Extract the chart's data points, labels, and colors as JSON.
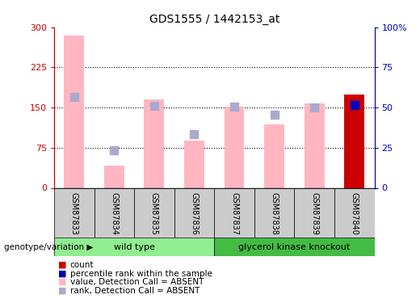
{
  "title": "GDS1555 / 1442153_at",
  "samples": [
    "GSM87833",
    "GSM87834",
    "GSM87835",
    "GSM87836",
    "GSM87837",
    "GSM87838",
    "GSM87839",
    "GSM87840"
  ],
  "values_absent": [
    285,
    42,
    165,
    88,
    152,
    118,
    158,
    null
  ],
  "ranks_absent": [
    170,
    70,
    153,
    100,
    152,
    137,
    150,
    null
  ],
  "count_value": [
    null,
    null,
    null,
    null,
    null,
    null,
    null,
    175
  ],
  "percentile_rank": [
    null,
    null,
    null,
    null,
    null,
    null,
    null,
    155
  ],
  "left_ylim": [
    0,
    300
  ],
  "right_ylim": [
    0,
    100
  ],
  "left_yticks": [
    0,
    75,
    150,
    225,
    300
  ],
  "right_yticks": [
    0,
    25,
    50,
    75,
    100
  ],
  "left_yticklabels": [
    "0",
    "75",
    "150",
    "225",
    "300"
  ],
  "right_yticklabels": [
    "0",
    "25",
    "50",
    "75",
    "100%"
  ],
  "groups": [
    {
      "label": "wild type",
      "samples": [
        0,
        1,
        2,
        3
      ],
      "color": "#90EE90"
    },
    {
      "label": "glycerol kinase knockout",
      "samples": [
        4,
        5,
        6,
        7
      ],
      "color": "#44BB44"
    }
  ],
  "bar_color_absent_value": "#FFB6C1",
  "bar_color_absent_rank": "#AAAACC",
  "bar_color_count": "#CC0000",
  "bar_color_percentile": "#0000BB",
  "legend_items": [
    {
      "label": "count",
      "color": "#CC0000"
    },
    {
      "label": "percentile rank within the sample",
      "color": "#0000BB"
    },
    {
      "label": "value, Detection Call = ABSENT",
      "color": "#FFB6C1"
    },
    {
      "label": "rank, Detection Call = ABSENT",
      "color": "#AAAACC"
    }
  ],
  "background_color": "#FFFFFF",
  "left_axis_color": "#CC0000",
  "right_axis_color": "#0000BB",
  "genotype_label": "genotype/variation"
}
